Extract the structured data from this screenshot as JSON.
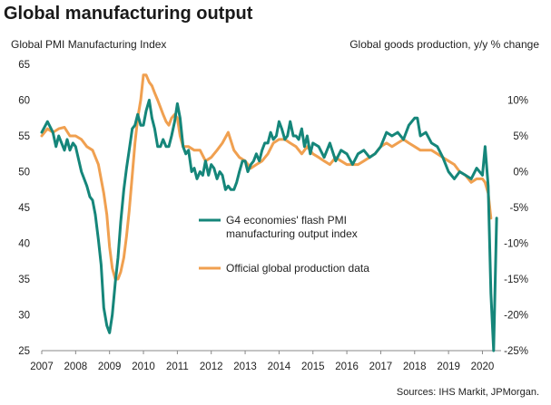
{
  "chart_data": {
    "type": "line",
    "title": "Global manufacturing output",
    "left_axis_label": "Global PMI Manufacturing Index",
    "right_axis_label": "Global goods production, y/y % change",
    "x_ticks": [
      "2007",
      "2008",
      "2009",
      "2010",
      "2011",
      "2012",
      "2013",
      "2014",
      "2015",
      "2016",
      "2017",
      "2018",
      "2019",
      "2020"
    ],
    "xlim": [
      2007.0,
      2020.55
    ],
    "ylim_left": [
      25,
      65
    ],
    "y_ticks_left": [
      "25",
      "30",
      "35",
      "40",
      "45",
      "50",
      "55",
      "60",
      "65"
    ],
    "ylim_right": [
      -25,
      15
    ],
    "y_ticks_right": [
      "-25%",
      "-20%",
      "-15%",
      "-10%",
      "-5%",
      "0%",
      "5%",
      "10%"
    ],
    "grid": false,
    "legend_placement": "center",
    "source": "Sources: IHS Markit, JPMorgan.",
    "series": [
      {
        "name": "G4 economies' flash PMI manufacturing output index",
        "axis": "left",
        "color": "#15867a",
        "x": [
          2007.0,
          2007.17,
          2007.33,
          2007.42,
          2007.5,
          2007.67,
          2007.75,
          2007.83,
          2007.92,
          2008.0,
          2008.17,
          2008.25,
          2008.33,
          2008.42,
          2008.5,
          2008.58,
          2008.67,
          2008.75,
          2008.83,
          2008.92,
          2009.0,
          2009.08,
          2009.17,
          2009.25,
          2009.33,
          2009.42,
          2009.5,
          2009.58,
          2009.67,
          2009.75,
          2009.83,
          2009.92,
          2010.0,
          2010.08,
          2010.17,
          2010.25,
          2010.33,
          2010.42,
          2010.5,
          2010.58,
          2010.67,
          2010.75,
          2010.83,
          2010.92,
          2011.0,
          2011.08,
          2011.17,
          2011.25,
          2011.33,
          2011.42,
          2011.5,
          2011.58,
          2011.67,
          2011.75,
          2011.83,
          2011.92,
          2012.0,
          2012.08,
          2012.17,
          2012.25,
          2012.33,
          2012.42,
          2012.5,
          2012.58,
          2012.67,
          2012.75,
          2012.83,
          2012.92,
          2013.0,
          2013.08,
          2013.17,
          2013.25,
          2013.33,
          2013.42,
          2013.5,
          2013.58,
          2013.67,
          2013.75,
          2013.83,
          2013.92,
          2014.0,
          2014.08,
          2014.17,
          2014.25,
          2014.33,
          2014.42,
          2014.5,
          2014.58,
          2014.67,
          2014.75,
          2014.83,
          2014.92,
          2015.0,
          2015.17,
          2015.33,
          2015.5,
          2015.67,
          2015.83,
          2016.0,
          2016.17,
          2016.33,
          2016.5,
          2016.67,
          2016.83,
          2017.0,
          2017.17,
          2017.33,
          2017.5,
          2017.67,
          2017.83,
          2018.0,
          2018.08,
          2018.17,
          2018.33,
          2018.5,
          2018.67,
          2018.83,
          2019.0,
          2019.17,
          2019.33,
          2019.5,
          2019.67,
          2019.83,
          2020.0,
          2020.08,
          2020.17,
          2020.25,
          2020.33,
          2020.42
        ],
        "values": [
          55.5,
          57.0,
          55.5,
          53.5,
          55.0,
          53.0,
          54.5,
          53.0,
          54.0,
          53.5,
          50.0,
          49.0,
          48.0,
          46.5,
          46.0,
          44.0,
          40.5,
          37.0,
          31.0,
          28.5,
          27.5,
          30.0,
          34.5,
          38.0,
          43.0,
          47.5,
          50.5,
          53.0,
          56.0,
          56.5,
          58.0,
          56.5,
          56.5,
          58.5,
          60.0,
          57.5,
          56.0,
          53.5,
          53.5,
          54.5,
          53.5,
          53.5,
          55.0,
          57.0,
          59.5,
          57.5,
          53.5,
          52.5,
          53.0,
          50.0,
          50.5,
          49.0,
          50.0,
          49.5,
          51.5,
          49.5,
          51.0,
          50.5,
          49.0,
          50.0,
          49.5,
          47.5,
          48.0,
          47.5,
          47.5,
          48.5,
          50.0,
          51.5,
          51.5,
          50.0,
          51.0,
          51.5,
          52.5,
          51.5,
          53.0,
          54.0,
          54.0,
          55.5,
          54.5,
          55.0,
          57.0,
          56.0,
          54.5,
          55.0,
          57.0,
          55.0,
          55.0,
          54.5,
          56.0,
          53.5,
          55.0,
          52.5,
          54.0,
          53.5,
          52.0,
          54.0,
          51.5,
          53.0,
          52.5,
          51.0,
          52.5,
          53.0,
          52.0,
          52.5,
          53.5,
          55.5,
          55.0,
          55.5,
          54.5,
          56.5,
          57.5,
          57.5,
          55.0,
          55.5,
          54.0,
          53.5,
          52.0,
          50.0,
          49.0,
          50.0,
          49.5,
          49.0,
          50.5,
          49.5,
          53.5,
          48.0,
          33.0,
          25.0,
          43.5
        ]
      },
      {
        "name": "Official global production data",
        "axis": "right",
        "color": "#f0a050",
        "x": [
          2007.0,
          2007.17,
          2007.33,
          2007.5,
          2007.67,
          2007.83,
          2008.0,
          2008.17,
          2008.33,
          2008.5,
          2008.67,
          2008.83,
          2008.92,
          2009.0,
          2009.08,
          2009.17,
          2009.25,
          2009.33,
          2009.42,
          2009.5,
          2009.58,
          2009.67,
          2009.75,
          2009.83,
          2009.92,
          2010.0,
          2010.08,
          2010.17,
          2010.25,
          2010.33,
          2010.42,
          2010.5,
          2010.58,
          2010.67,
          2010.75,
          2010.83,
          2010.92,
          2011.0,
          2011.08,
          2011.17,
          2011.33,
          2011.5,
          2011.67,
          2011.83,
          2012.0,
          2012.17,
          2012.33,
          2012.5,
          2012.67,
          2012.83,
          2013.0,
          2013.17,
          2013.33,
          2013.5,
          2013.67,
          2013.83,
          2014.0,
          2014.17,
          2014.33,
          2014.5,
          2014.67,
          2014.83,
          2015.0,
          2015.17,
          2015.33,
          2015.5,
          2015.67,
          2015.83,
          2016.0,
          2016.17,
          2016.33,
          2016.5,
          2016.67,
          2016.83,
          2017.0,
          2017.17,
          2017.33,
          2017.5,
          2017.67,
          2017.83,
          2018.0,
          2018.17,
          2018.33,
          2018.5,
          2018.67,
          2018.83,
          2019.0,
          2019.17,
          2019.33,
          2019.5,
          2019.67,
          2019.83,
          2020.0,
          2020.08,
          2020.17,
          2020.25
        ],
        "values": [
          5.0,
          6.0,
          5.5,
          6.0,
          6.2,
          5.0,
          5.0,
          4.5,
          3.5,
          3.0,
          1.0,
          -3.0,
          -6.0,
          -10.5,
          -13.5,
          -15.0,
          -15.0,
          -14.0,
          -12.0,
          -9.0,
          -5.5,
          -0.5,
          4.0,
          7.5,
          10.0,
          13.5,
          13.5,
          12.5,
          12.0,
          11.0,
          10.0,
          9.0,
          8.0,
          7.0,
          6.5,
          7.5,
          8.0,
          7.5,
          5.0,
          3.5,
          3.5,
          3.0,
          3.0,
          1.5,
          2.0,
          3.0,
          4.0,
          5.5,
          3.0,
          2.0,
          1.5,
          0.5,
          1.0,
          1.5,
          2.5,
          4.0,
          4.5,
          4.5,
          4.0,
          3.5,
          2.5,
          3.5,
          2.5,
          2.0,
          1.5,
          1.0,
          2.0,
          1.5,
          1.0,
          1.0,
          1.0,
          1.5,
          2.0,
          2.5,
          3.5,
          4.0,
          3.5,
          4.0,
          4.5,
          4.0,
          3.5,
          3.0,
          3.0,
          3.0,
          2.5,
          2.0,
          1.5,
          1.0,
          0.0,
          -0.5,
          -1.5,
          -1.0,
          -1.0,
          -1.5,
          -3.0,
          -6.5
        ]
      }
    ]
  }
}
